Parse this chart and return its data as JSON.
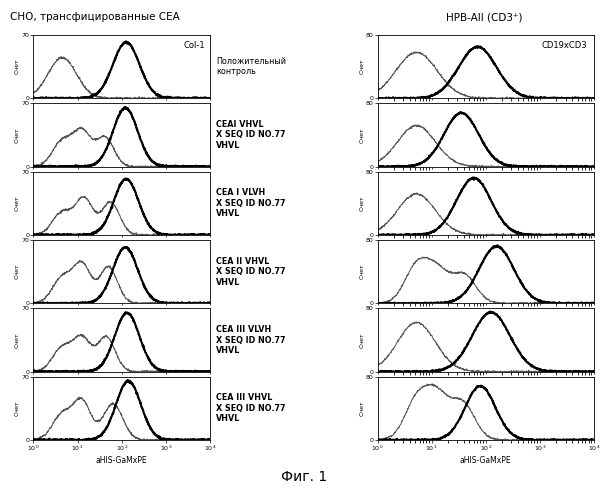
{
  "title_left": "СНО, трансфицированные CEA",
  "title_right": "HPB-All (CD3⁺)",
  "footer": "Фиг. 1",
  "xlabel": "aHIS-GaMxPE",
  "ylabel": "Счет",
  "panel_labels_left": [
    "Col-1",
    "",
    "",
    "",
    "",
    ""
  ],
  "panel_labels_right": [
    "CD19xCD3",
    "",
    "",
    "",
    "",
    ""
  ],
  "row_labels": [
    "Положительный\nконтроль",
    "CEAI VHVL\nX SEQ ID NO.77\nVHVL",
    "CEA I VLVH\nX SEQ ID NO.77\nVHVL",
    "CEA II VHVL\nX SEQ ID NO.77\nVHVL",
    "CEA III VLVH\nX SEQ ID NO.77\nVHVL",
    "CEA III VHVL\nX SEQ ID NO.77\nVHVL"
  ],
  "ylim_left": [
    0,
    70
  ],
  "ylim_right": [
    0,
    80
  ],
  "bg_color": "#ffffff"
}
